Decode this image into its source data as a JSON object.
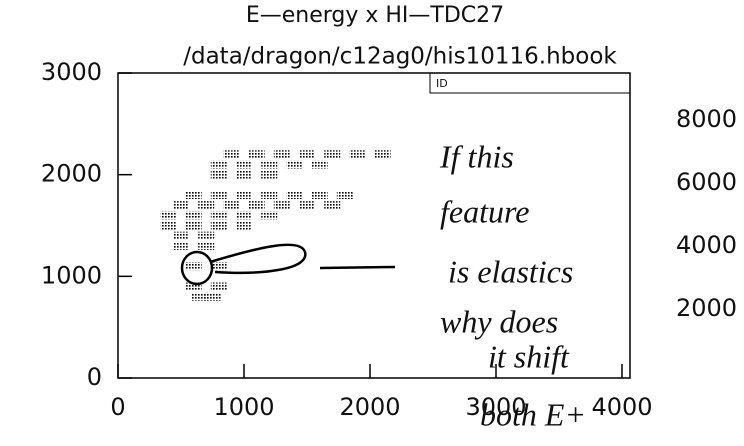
{
  "chart_data": {
    "type": "scatter",
    "title": "E—energy x HI—TDC27",
    "subtitle": "/data/dragon/c12ag0/his10116.hbook",
    "box_label": "ID",
    "x": [
      900,
      1100,
      1300,
      1500,
      1700,
      1900,
      2100,
      800,
      1000,
      1200,
      1400,
      1600,
      800,
      1000,
      1200,
      600,
      800,
      1000,
      1200,
      1400,
      1600,
      1800,
      500,
      700,
      900,
      1100,
      1300,
      1500,
      1700,
      400,
      600,
      800,
      1000,
      1200,
      400,
      600,
      800,
      1000,
      500,
      700,
      500,
      700,
      600,
      800,
      600,
      800,
      650,
      750
    ],
    "y": [
      2200,
      2200,
      2200,
      2200,
      2200,
      2200,
      2200,
      2100,
      2100,
      2100,
      2100,
      2100,
      2000,
      2000,
      2000,
      1800,
      1800,
      1800,
      1800,
      1800,
      1800,
      1800,
      1700,
      1700,
      1700,
      1700,
      1700,
      1700,
      1700,
      1600,
      1600,
      1600,
      1600,
      1600,
      1500,
      1500,
      1500,
      1500,
      1400,
      1400,
      1300,
      1300,
      1100,
      1100,
      900,
      900,
      800,
      800
    ],
    "color": "#000000",
    "xlim": [
      0,
      4000
    ],
    "xticks": [
      0,
      1000,
      2000,
      3000,
      4000
    ],
    "ylim": [
      0,
      3000
    ],
    "yticks": [
      0,
      1000,
      2000,
      3000
    ],
    "y2lim": [
      0,
      8000
    ],
    "y2ticks": [
      2000,
      4000,
      6000,
      8000
    ],
    "annotations": [
      "If this",
      "feature",
      "is elastics",
      "why does",
      "it shift",
      "both E+"
    ]
  }
}
